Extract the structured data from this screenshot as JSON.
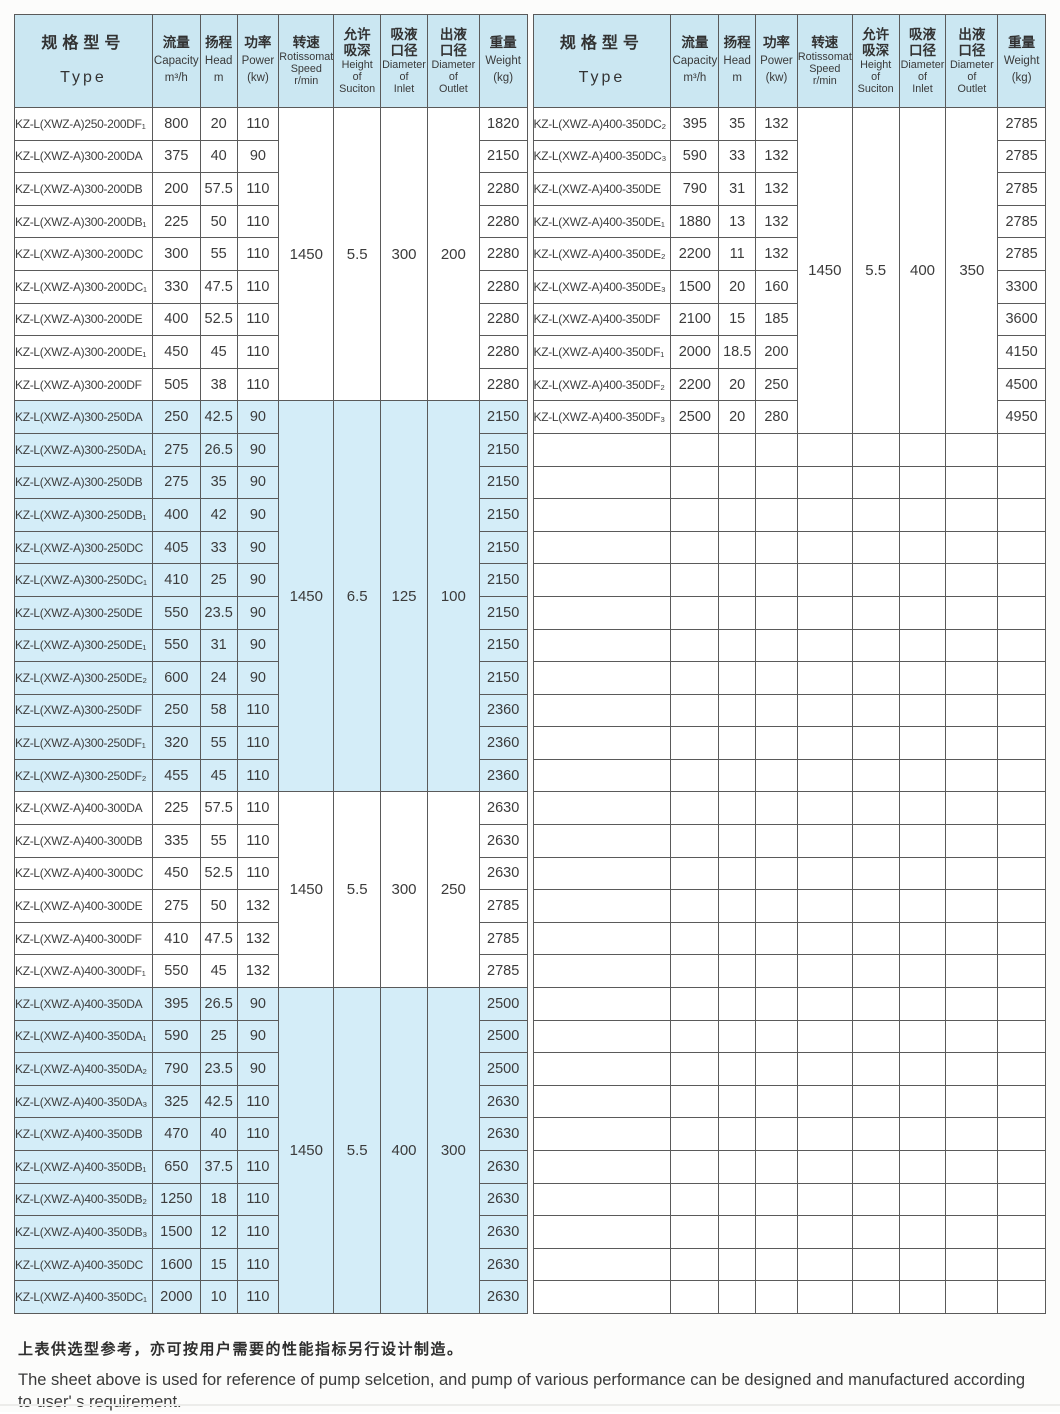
{
  "colors": {
    "header_bg": "#cbe7f2",
    "band_bg": "#d4edf8",
    "border": "#5a5a5a"
  },
  "notes": {
    "cn": "上表供选型参考，亦可按用户需要的性能指标另行设计制造。",
    "en": "The sheet above is used for reference of pump selcetion, and pump of various performance can be designed and manufactured according to user' s requirement."
  },
  "header_cols": [
    {
      "key": "type",
      "cn": [
        "规格型号"
      ],
      "en": [
        "Type"
      ]
    },
    {
      "key": "capacity",
      "cn": [
        "流量"
      ],
      "en": [
        "Capacity",
        "m³/h"
      ]
    },
    {
      "key": "head",
      "cn": [
        "扬程"
      ],
      "en": [
        "Head",
        "m"
      ]
    },
    {
      "key": "power",
      "cn": [
        "功率"
      ],
      "en": [
        "Power",
        "(kw)"
      ]
    },
    {
      "key": "speed",
      "cn": [
        "转速"
      ],
      "en": [
        "Rotissomat",
        "Speed",
        "r/min"
      ]
    },
    {
      "key": "suction",
      "cn": [
        "允许",
        "吸深"
      ],
      "en": [
        "Height",
        "of",
        "Suciton"
      ]
    },
    {
      "key": "inlet",
      "cn": [
        "吸液",
        "口径"
      ],
      "en": [
        "Diameter",
        "of",
        "Inlet"
      ]
    },
    {
      "key": "outlet",
      "cn": [
        "出液",
        "口径"
      ],
      "en": [
        "Diameter",
        "of",
        "Outlet"
      ]
    },
    {
      "key": "weight",
      "cn": [
        "重量"
      ],
      "en": [
        "Weight",
        "(kg)"
      ]
    }
  ],
  "tables": [
    {
      "name": "left",
      "empty_rows": 0,
      "groups": [
        {
          "shaded": false,
          "merged": {
            "speed": "1450",
            "suction": "5.5",
            "inlet": "300",
            "outlet": "200"
          },
          "rows": [
            {
              "type": "KZ-L(XWZ-A)250-200DF₁",
              "capacity": "800",
              "head": "20",
              "power": "110",
              "weight": "1820"
            },
            {
              "type": "KZ-L(XWZ-A)300-200DA",
              "capacity": "375",
              "head": "40",
              "power": "90",
              "weight": "2150"
            },
            {
              "type": "KZ-L(XWZ-A)300-200DB",
              "capacity": "200",
              "head": "57.5",
              "power": "110",
              "weight": "2280"
            },
            {
              "type": "KZ-L(XWZ-A)300-200DB₁",
              "capacity": "225",
              "head": "50",
              "power": "110",
              "weight": "2280"
            },
            {
              "type": "KZ-L(XWZ-A)300-200DC",
              "capacity": "300",
              "head": "55",
              "power": "110",
              "weight": "2280"
            },
            {
              "type": "KZ-L(XWZ-A)300-200DC₁",
              "capacity": "330",
              "head": "47.5",
              "power": "110",
              "weight": "2280"
            },
            {
              "type": "KZ-L(XWZ-A)300-200DE",
              "capacity": "400",
              "head": "52.5",
              "power": "110",
              "weight": "2280"
            },
            {
              "type": "KZ-L(XWZ-A)300-200DE₁",
              "capacity": "450",
              "head": "45",
              "power": "110",
              "weight": "2280"
            },
            {
              "type": "KZ-L(XWZ-A)300-200DF",
              "capacity": "505",
              "head": "38",
              "power": "110",
              "weight": "2280"
            }
          ]
        },
        {
          "shaded": true,
          "merged": {
            "speed": "1450",
            "suction": "6.5",
            "inlet": "125",
            "outlet": "100"
          },
          "rows": [
            {
              "type": "KZ-L(XWZ-A)300-250DA",
              "capacity": "250",
              "head": "42.5",
              "power": "90",
              "weight": "2150"
            },
            {
              "type": "KZ-L(XWZ-A)300-250DA₁",
              "capacity": "275",
              "head": "26.5",
              "power": "90",
              "weight": "2150"
            },
            {
              "type": "KZ-L(XWZ-A)300-250DB",
              "capacity": "275",
              "head": "35",
              "power": "90",
              "weight": "2150"
            },
            {
              "type": "KZ-L(XWZ-A)300-250DB₁",
              "capacity": "400",
              "head": "42",
              "power": "90",
              "weight": "2150"
            },
            {
              "type": "KZ-L(XWZ-A)300-250DC",
              "capacity": "405",
              "head": "33",
              "power": "90",
              "weight": "2150"
            },
            {
              "type": "KZ-L(XWZ-A)300-250DC₁",
              "capacity": "410",
              "head": "25",
              "power": "90",
              "weight": "2150"
            },
            {
              "type": "KZ-L(XWZ-A)300-250DE",
              "capacity": "550",
              "head": "23.5",
              "power": "90",
              "weight": "2150"
            },
            {
              "type": "KZ-L(XWZ-A)300-250DE₁",
              "capacity": "550",
              "head": "31",
              "power": "90",
              "weight": "2150"
            },
            {
              "type": "KZ-L(XWZ-A)300-250DE₂",
              "capacity": "600",
              "head": "24",
              "power": "90",
              "weight": "2150"
            },
            {
              "type": "KZ-L(XWZ-A)300-250DF",
              "capacity": "250",
              "head": "58",
              "power": "110",
              "weight": "2360"
            },
            {
              "type": "KZ-L(XWZ-A)300-250DF₁",
              "capacity": "320",
              "head": "55",
              "power": "110",
              "weight": "2360"
            },
            {
              "type": "KZ-L(XWZ-A)300-250DF₂",
              "capacity": "455",
              "head": "45",
              "power": "110",
              "weight": "2360"
            }
          ]
        },
        {
          "shaded": false,
          "merged": {
            "speed": "1450",
            "suction": "5.5",
            "inlet": "300",
            "outlet": "250"
          },
          "rows": [
            {
              "type": "KZ-L(XWZ-A)400-300DA",
              "capacity": "225",
              "head": "57.5",
              "power": "110",
              "weight": "2630"
            },
            {
              "type": "KZ-L(XWZ-A)400-300DB",
              "capacity": "335",
              "head": "55",
              "power": "110",
              "weight": "2630"
            },
            {
              "type": "KZ-L(XWZ-A)400-300DC",
              "capacity": "450",
              "head": "52.5",
              "power": "110",
              "weight": "2630"
            },
            {
              "type": "KZ-L(XWZ-A)400-300DE",
              "capacity": "275",
              "head": "50",
              "power": "132",
              "weight": "2785"
            },
            {
              "type": "KZ-L(XWZ-A)400-300DF",
              "capacity": "410",
              "head": "47.5",
              "power": "132",
              "weight": "2785"
            },
            {
              "type": "KZ-L(XWZ-A)400-300DF₁",
              "capacity": "550",
              "head": "45",
              "power": "132",
              "weight": "2785"
            }
          ]
        },
        {
          "shaded": true,
          "merged": {
            "speed": "1450",
            "suction": "5.5",
            "inlet": "400",
            "outlet": "300"
          },
          "rows": [
            {
              "type": "KZ-L(XWZ-A)400-350DA",
              "capacity": "395",
              "head": "26.5",
              "power": "90",
              "weight": "2500"
            },
            {
              "type": "KZ-L(XWZ-A)400-350DA₁",
              "capacity": "590",
              "head": "25",
              "power": "90",
              "weight": "2500"
            },
            {
              "type": "KZ-L(XWZ-A)400-350DA₂",
              "capacity": "790",
              "head": "23.5",
              "power": "90",
              "weight": "2500"
            },
            {
              "type": "KZ-L(XWZ-A)400-350DA₃",
              "capacity": "325",
              "head": "42.5",
              "power": "110",
              "weight": "2630"
            },
            {
              "type": "KZ-L(XWZ-A)400-350DB",
              "capacity": "470",
              "head": "40",
              "power": "110",
              "weight": "2630"
            },
            {
              "type": "KZ-L(XWZ-A)400-350DB₁",
              "capacity": "650",
              "head": "37.5",
              "power": "110",
              "weight": "2630"
            },
            {
              "type": "KZ-L(XWZ-A)400-350DB₂",
              "capacity": "1250",
              "head": "18",
              "power": "110",
              "weight": "2630"
            },
            {
              "type": "KZ-L(XWZ-A)400-350DB₃",
              "capacity": "1500",
              "head": "12",
              "power": "110",
              "weight": "2630"
            },
            {
              "type": "KZ-L(XWZ-A)400-350DC",
              "capacity": "1600",
              "head": "15",
              "power": "110",
              "weight": "2630"
            },
            {
              "type": "KZ-L(XWZ-A)400-350DC₁",
              "capacity": "2000",
              "head": "10",
              "power": "110",
              "weight": "2630"
            }
          ]
        }
      ]
    },
    {
      "name": "right",
      "empty_rows": 27,
      "groups": [
        {
          "shaded": false,
          "merged": {
            "speed": "1450",
            "suction": "5.5",
            "inlet": "400",
            "outlet": "350"
          },
          "rows": [
            {
              "type": "KZ-L(XWZ-A)400-350DC₂",
              "capacity": "395",
              "head": "35",
              "power": "132",
              "weight": "2785"
            },
            {
              "type": "KZ-L(XWZ-A)400-350DC₃",
              "capacity": "590",
              "head": "33",
              "power": "132",
              "weight": "2785"
            },
            {
              "type": "KZ-L(XWZ-A)400-350DE",
              "capacity": "790",
              "head": "31",
              "power": "132",
              "weight": "2785"
            },
            {
              "type": "KZ-L(XWZ-A)400-350DE₁",
              "capacity": "1880",
              "head": "13",
              "power": "132",
              "weight": "2785"
            },
            {
              "type": "KZ-L(XWZ-A)400-350DE₂",
              "capacity": "2200",
              "head": "11",
              "power": "132",
              "weight": "2785"
            },
            {
              "type": "KZ-L(XWZ-A)400-350DE₃",
              "capacity": "1500",
              "head": "20",
              "power": "160",
              "weight": "3300"
            },
            {
              "type": "KZ-L(XWZ-A)400-350DF",
              "capacity": "2100",
              "head": "15",
              "power": "185",
              "weight": "3600"
            },
            {
              "type": "KZ-L(XWZ-A)400-350DF₁",
              "capacity": "2000",
              "head": "18.5",
              "power": "200",
              "weight": "4150"
            },
            {
              "type": "KZ-L(XWZ-A)400-350DF₂",
              "capacity": "2200",
              "head": "20",
              "power": "250",
              "weight": "4500"
            },
            {
              "type": "KZ-L(XWZ-A)400-350DF₃",
              "capacity": "2500",
              "head": "20",
              "power": "280",
              "weight": "4950"
            }
          ]
        }
      ]
    }
  ]
}
